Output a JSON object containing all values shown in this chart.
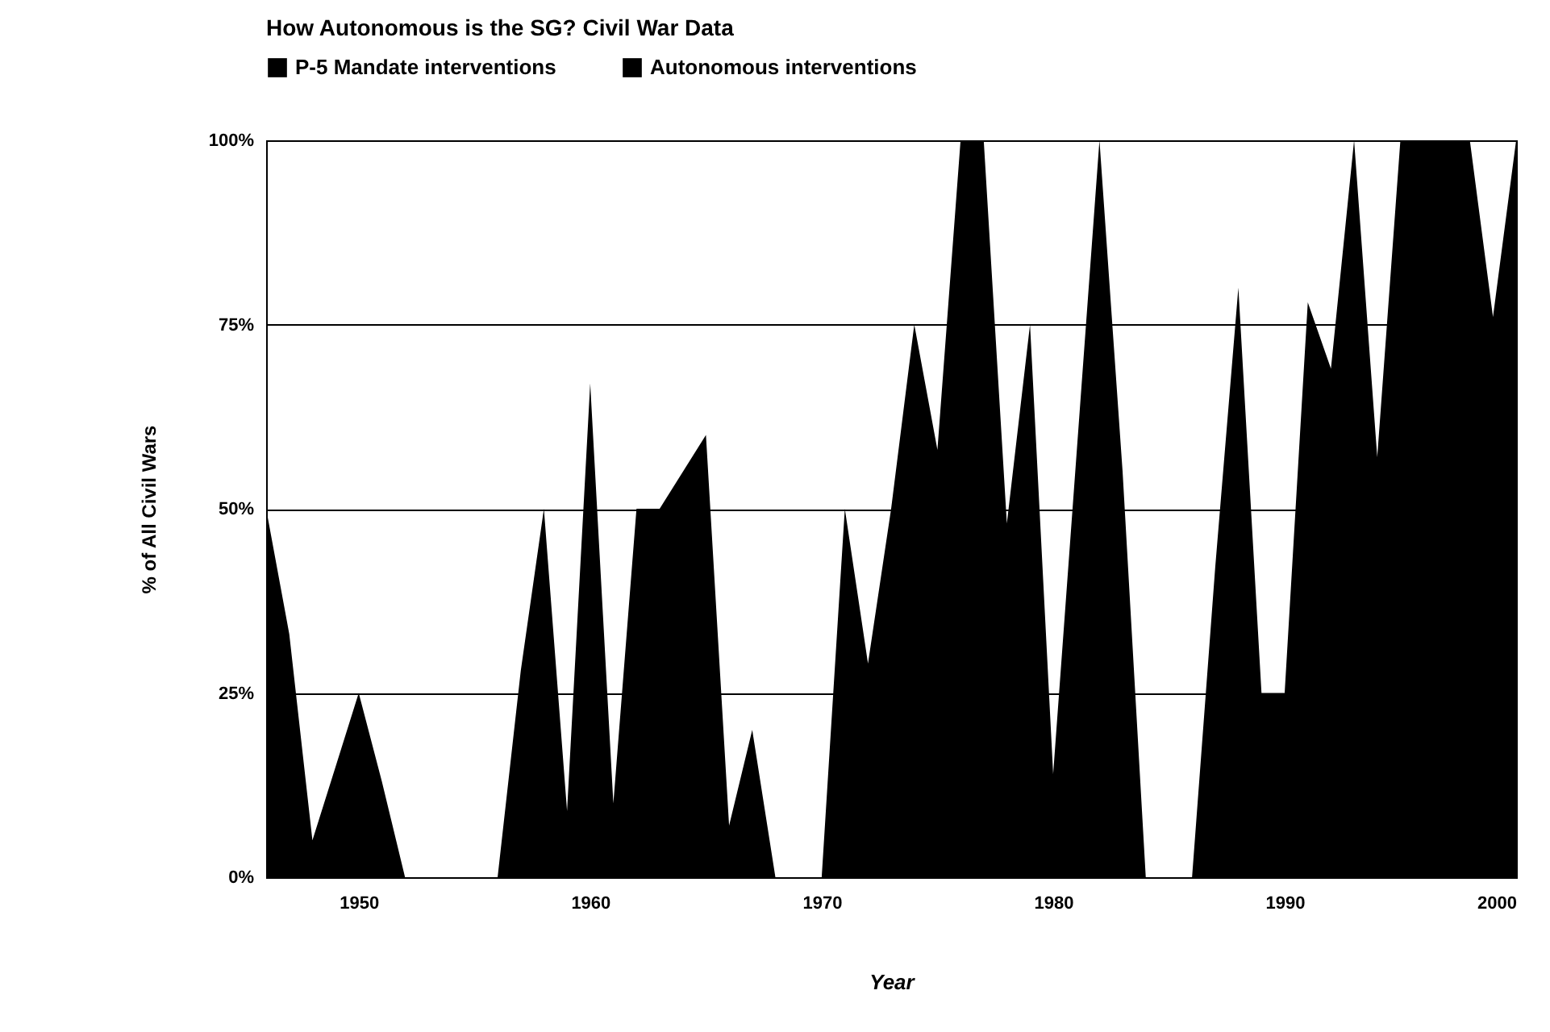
{
  "chart_data": {
    "type": "area",
    "title": "How Autonomous is the SG? Civil War Data",
    "xlabel": "Year",
    "ylabel": "% of All Civil Wars",
    "x": [
      1946,
      1947,
      1948,
      1949,
      1950,
      1951,
      1952,
      1953,
      1954,
      1955,
      1956,
      1957,
      1958,
      1959,
      1960,
      1961,
      1962,
      1963,
      1964,
      1965,
      1966,
      1967,
      1968,
      1969,
      1970,
      1971,
      1972,
      1973,
      1974,
      1975,
      1976,
      1977,
      1978,
      1979,
      1980,
      1981,
      1982,
      1983,
      1984,
      1985,
      1986,
      1987,
      1988,
      1989,
      1990,
      1991,
      1992,
      1993,
      1994,
      1995,
      1996,
      1997,
      1998,
      1999,
      2000
    ],
    "series": [
      {
        "name": "P-5 Mandate interventions",
        "color": "#000000",
        "values": [
          50,
          33,
          5,
          15,
          25,
          13,
          0,
          0,
          0,
          0,
          0,
          28,
          50,
          9,
          67,
          10,
          50,
          50,
          55,
          60,
          7,
          20,
          0,
          0,
          0,
          50,
          29,
          50,
          75,
          58,
          100,
          100,
          48,
          75,
          14,
          57,
          100,
          55,
          0,
          0,
          0,
          42,
          80,
          25,
          25,
          78,
          69,
          100,
          57,
          100,
          100,
          100,
          100,
          76,
          100
        ]
      },
      {
        "name": "Autonomous interventions",
        "color": "#000000",
        "values": [
          null,
          null,
          null,
          null,
          null,
          null,
          null,
          null,
          null,
          null,
          null,
          null,
          null,
          null,
          null,
          null,
          null,
          null,
          null,
          null,
          null,
          null,
          null,
          null,
          null,
          null,
          null,
          null,
          null,
          null,
          null,
          null,
          null,
          null,
          null,
          null,
          null,
          null,
          null,
          null,
          null,
          null,
          null,
          null,
          null,
          null,
          null,
          null,
          null,
          null,
          null,
          null,
          null,
          null,
          null
        ]
      }
    ],
    "xlim": [
      1946,
      2000
    ],
    "xticks": [
      1950,
      1960,
      1970,
      1980,
      1990,
      2000
    ],
    "ylim": [
      0,
      100
    ],
    "yticks": [
      {
        "value": 0,
        "label": "0%"
      },
      {
        "value": 25,
        "label": "25%"
      },
      {
        "value": 50,
        "label": "50%"
      },
      {
        "value": 75,
        "label": "75%"
      },
      {
        "value": 100,
        "label": "100%"
      }
    ],
    "grid": "y",
    "legend": "top left"
  }
}
